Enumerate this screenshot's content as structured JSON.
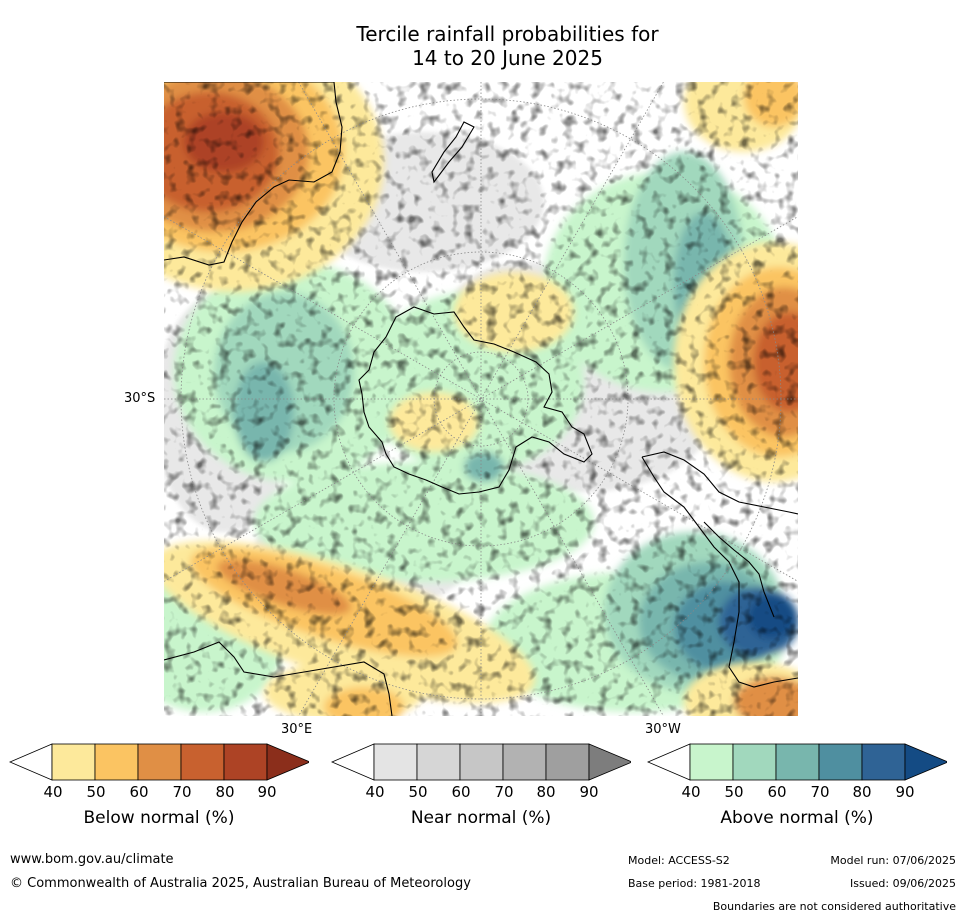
{
  "title": {
    "line1": "Tercile rainfall probabilities for",
    "line2": "14 to 20 June 2025"
  },
  "map": {
    "labels": {
      "lat": "30°S",
      "lon_east": "30°E",
      "lon_west": "30°W"
    },
    "icons": [
      "coastline-icon",
      "graticule-icon"
    ]
  },
  "legend": {
    "below": {
      "label": "Below normal (%)",
      "ticks": [
        "40",
        "50",
        "60",
        "70",
        "80",
        "90"
      ],
      "colors": [
        "#ffffff",
        "#fde99b",
        "#fbc462",
        "#e08f45",
        "#c8612f",
        "#ad4325",
        "#8b2e1b"
      ]
    },
    "near": {
      "label": "Near normal (%)",
      "ticks": [
        "40",
        "50",
        "60",
        "70",
        "80",
        "90"
      ],
      "colors": [
        "#ffffff",
        "#e4e4e4",
        "#d6d6d6",
        "#c6c6c6",
        "#b2b2b2",
        "#9f9f9f",
        "#7d7d7d"
      ]
    },
    "above": {
      "label": "Above normal (%)",
      "ticks": [
        "40",
        "50",
        "60",
        "70",
        "80",
        "90"
      ],
      "colors": [
        "#ffffff",
        "#c8f5cc",
        "#a1d8bd",
        "#78b6ad",
        "#4f8fa0",
        "#2f6395",
        "#144b84"
      ]
    }
  },
  "footer": {
    "url": "www.bom.gov.au/climate",
    "copyright": "© Commonwealth of Australia 2025, Australian Bureau of Meteorology",
    "model": "Model: ACCESS-S2",
    "model_run": "Model run: 07/06/2025",
    "base_period": "Base period: 1981-2018",
    "issued": "Issued: 09/06/2025",
    "boundaries": "Boundaries are not considered authoritative"
  }
}
